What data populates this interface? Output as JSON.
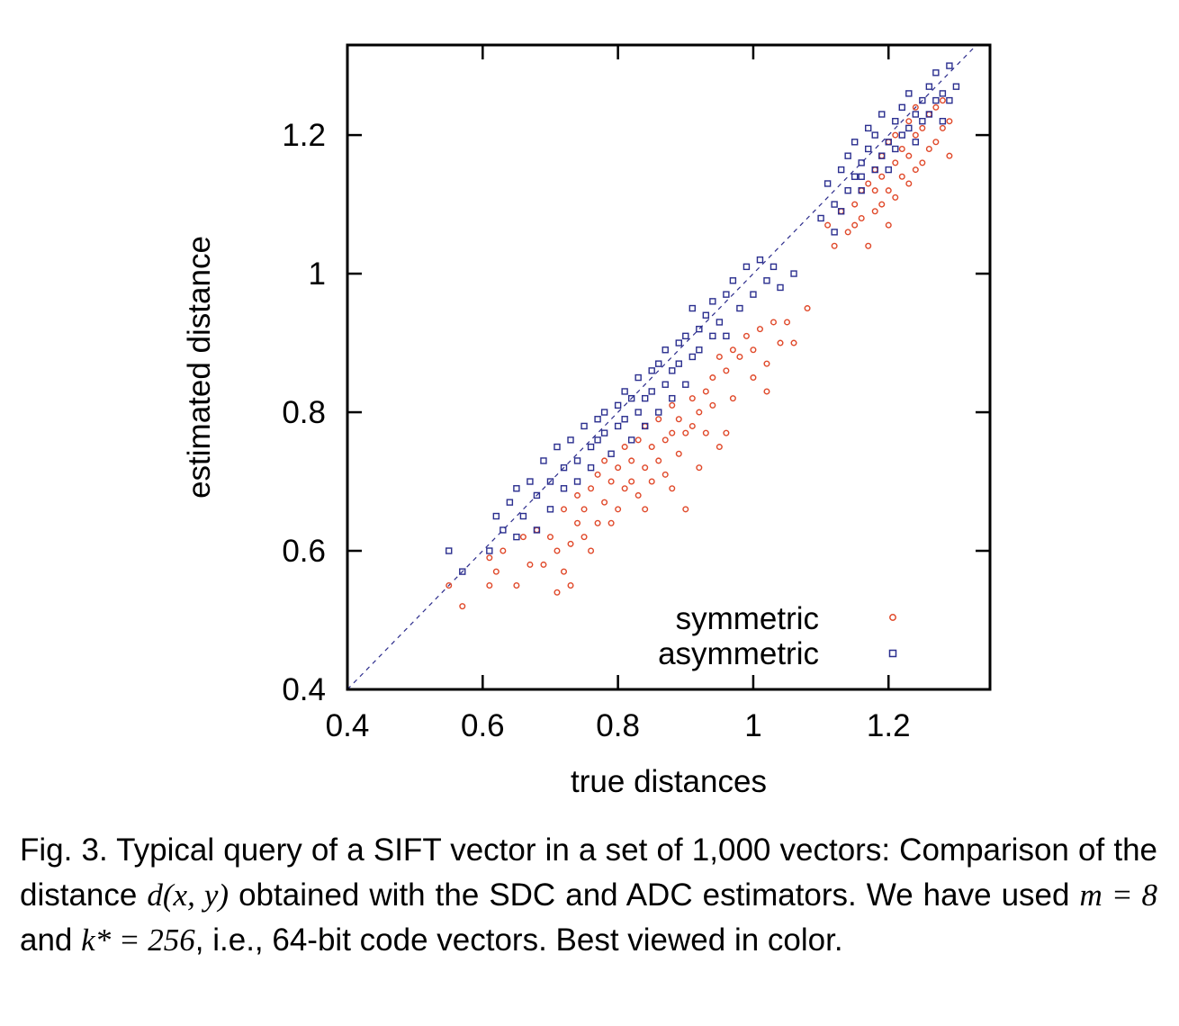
{
  "chart_data": {
    "type": "scatter",
    "title": "",
    "xlabel": "true distances",
    "ylabel": "estimated distance",
    "xlim": [
      0.4,
      1.35
    ],
    "ylim": [
      0.4,
      1.33
    ],
    "xticks": [
      0.4,
      0.6,
      0.8,
      1.0,
      1.2
    ],
    "xtick_labels": [
      "0.4",
      "0.6",
      "0.8",
      "1",
      "1.2"
    ],
    "yticks": [
      0.4,
      0.6,
      0.8,
      1.0,
      1.2
    ],
    "ytick_labels": [
      "0.4",
      "0.6",
      "0.8",
      "1",
      "1.2"
    ],
    "grid": false,
    "legend_position": "bottom-right",
    "reference_line": {
      "style": "dashed",
      "color": "#2c2c8c",
      "from": [
        0.4,
        0.4
      ],
      "to": [
        1.35,
        1.35
      ]
    },
    "series": [
      {
        "name": "symmetric",
        "marker": "circle",
        "color": "#e0492a",
        "points": [
          [
            0.55,
            0.55
          ],
          [
            0.57,
            0.52
          ],
          [
            0.61,
            0.59
          ],
          [
            0.61,
            0.55
          ],
          [
            0.62,
            0.57
          ],
          [
            0.63,
            0.6
          ],
          [
            0.65,
            0.55
          ],
          [
            0.66,
            0.62
          ],
          [
            0.67,
            0.58
          ],
          [
            0.68,
            0.63
          ],
          [
            0.7,
            0.62
          ],
          [
            0.71,
            0.54
          ],
          [
            0.71,
            0.6
          ],
          [
            0.72,
            0.57
          ],
          [
            0.72,
            0.66
          ],
          [
            0.73,
            0.61
          ],
          [
            0.74,
            0.64
          ],
          [
            0.74,
            0.68
          ],
          [
            0.75,
            0.62
          ],
          [
            0.75,
            0.66
          ],
          [
            0.76,
            0.69
          ],
          [
            0.77,
            0.64
          ],
          [
            0.77,
            0.71
          ],
          [
            0.78,
            0.67
          ],
          [
            0.78,
            0.73
          ],
          [
            0.79,
            0.7
          ],
          [
            0.8,
            0.66
          ],
          [
            0.8,
            0.72
          ],
          [
            0.81,
            0.69
          ],
          [
            0.81,
            0.75
          ],
          [
            0.82,
            0.7
          ],
          [
            0.82,
            0.73
          ],
          [
            0.83,
            0.68
          ],
          [
            0.83,
            0.76
          ],
          [
            0.84,
            0.72
          ],
          [
            0.84,
            0.78
          ],
          [
            0.85,
            0.7
          ],
          [
            0.85,
            0.75
          ],
          [
            0.86,
            0.73
          ],
          [
            0.86,
            0.79
          ],
          [
            0.87,
            0.76
          ],
          [
            0.87,
            0.71
          ],
          [
            0.88,
            0.77
          ],
          [
            0.88,
            0.81
          ],
          [
            0.89,
            0.74
          ],
          [
            0.89,
            0.79
          ],
          [
            0.9,
            0.66
          ],
          [
            0.9,
            0.77
          ],
          [
            0.91,
            0.82
          ],
          [
            0.91,
            0.78
          ],
          [
            0.92,
            0.8
          ],
          [
            0.93,
            0.77
          ],
          [
            0.93,
            0.83
          ],
          [
            0.94,
            0.81
          ],
          [
            0.94,
            0.85
          ],
          [
            0.95,
            0.75
          ],
          [
            0.95,
            0.88
          ],
          [
            0.96,
            0.86
          ],
          [
            0.97,
            0.89
          ],
          [
            0.98,
            0.88
          ],
          [
            0.99,
            0.91
          ],
          [
            1.0,
            0.89
          ],
          [
            1.01,
            0.92
          ],
          [
            1.03,
            0.93
          ],
          [
            1.05,
            0.93
          ],
          [
            1.06,
            0.9
          ],
          [
            1.08,
            0.95
          ],
          [
            1.02,
            0.83
          ],
          [
            1.0,
            0.85
          ],
          [
            0.97,
            0.82
          ],
          [
            0.69,
            0.58
          ],
          [
            0.73,
            0.55
          ],
          [
            0.76,
            0.6
          ],
          [
            0.79,
            0.64
          ],
          [
            0.84,
            0.66
          ],
          [
            0.88,
            0.69
          ],
          [
            0.92,
            0.72
          ],
          [
            0.96,
            0.77
          ],
          [
            1.02,
            0.87
          ],
          [
            1.04,
            0.9
          ],
          [
            1.11,
            1.07
          ],
          [
            1.12,
            1.04
          ],
          [
            1.13,
            1.09
          ],
          [
            1.14,
            1.06
          ],
          [
            1.15,
            1.1
          ],
          [
            1.15,
            1.07
          ],
          [
            1.16,
            1.12
          ],
          [
            1.16,
            1.08
          ],
          [
            1.17,
            1.04
          ],
          [
            1.17,
            1.13
          ],
          [
            1.18,
            1.09
          ],
          [
            1.18,
            1.15
          ],
          [
            1.19,
            1.1
          ],
          [
            1.19,
            1.14
          ],
          [
            1.2,
            1.12
          ],
          [
            1.2,
            1.07
          ],
          [
            1.21,
            1.16
          ],
          [
            1.21,
            1.11
          ],
          [
            1.22,
            1.14
          ],
          [
            1.22,
            1.18
          ],
          [
            1.23,
            1.13
          ],
          [
            1.23,
            1.17
          ],
          [
            1.24,
            1.15
          ],
          [
            1.24,
            1.2
          ],
          [
            1.25,
            1.16
          ],
          [
            1.25,
            1.21
          ],
          [
            1.26,
            1.18
          ],
          [
            1.26,
            1.23
          ],
          [
            1.27,
            1.19
          ],
          [
            1.27,
            1.24
          ],
          [
            1.28,
            1.21
          ],
          [
            1.28,
            1.25
          ],
          [
            1.29,
            1.22
          ],
          [
            1.29,
            1.17
          ],
          [
            1.2,
            1.19
          ],
          [
            1.21,
            1.2
          ],
          [
            1.23,
            1.22
          ],
          [
            1.24,
            1.24
          ],
          [
            1.19,
            1.17
          ],
          [
            1.18,
            1.12
          ]
        ]
      },
      {
        "name": "asymmetric",
        "marker": "square",
        "color": "#2b2f8f",
        "points": [
          [
            0.55,
            0.6
          ],
          [
            0.57,
            0.57
          ],
          [
            0.61,
            0.6
          ],
          [
            0.62,
            0.65
          ],
          [
            0.63,
            0.63
          ],
          [
            0.64,
            0.67
          ],
          [
            0.65,
            0.69
          ],
          [
            0.66,
            0.65
          ],
          [
            0.67,
            0.7
          ],
          [
            0.68,
            0.68
          ],
          [
            0.69,
            0.73
          ],
          [
            0.7,
            0.7
          ],
          [
            0.7,
            0.66
          ],
          [
            0.71,
            0.75
          ],
          [
            0.72,
            0.72
          ],
          [
            0.72,
            0.69
          ],
          [
            0.73,
            0.76
          ],
          [
            0.74,
            0.73
          ],
          [
            0.74,
            0.7
          ],
          [
            0.75,
            0.78
          ],
          [
            0.76,
            0.75
          ],
          [
            0.76,
            0.72
          ],
          [
            0.77,
            0.79
          ],
          [
            0.77,
            0.76
          ],
          [
            0.78,
            0.8
          ],
          [
            0.78,
            0.77
          ],
          [
            0.79,
            0.74
          ],
          [
            0.8,
            0.81
          ],
          [
            0.8,
            0.78
          ],
          [
            0.81,
            0.83
          ],
          [
            0.81,
            0.79
          ],
          [
            0.82,
            0.76
          ],
          [
            0.82,
            0.82
          ],
          [
            0.83,
            0.8
          ],
          [
            0.83,
            0.85
          ],
          [
            0.84,
            0.82
          ],
          [
            0.84,
            0.78
          ],
          [
            0.85,
            0.86
          ],
          [
            0.85,
            0.83
          ],
          [
            0.86,
            0.8
          ],
          [
            0.86,
            0.87
          ],
          [
            0.87,
            0.84
          ],
          [
            0.87,
            0.89
          ],
          [
            0.88,
            0.86
          ],
          [
            0.88,
            0.82
          ],
          [
            0.89,
            0.9
          ],
          [
            0.89,
            0.87
          ],
          [
            0.9,
            0.84
          ],
          [
            0.9,
            0.91
          ],
          [
            0.91,
            0.88
          ],
          [
            0.91,
            0.95
          ],
          [
            0.92,
            0.92
          ],
          [
            0.92,
            0.89
          ],
          [
            0.93,
            0.94
          ],
          [
            0.94,
            0.91
          ],
          [
            0.94,
            0.96
          ],
          [
            0.95,
            0.93
          ],
          [
            0.96,
            0.97
          ],
          [
            0.96,
            0.91
          ],
          [
            0.97,
            0.99
          ],
          [
            0.98,
            0.95
          ],
          [
            0.99,
            1.01
          ],
          [
            1.0,
            0.97
          ],
          [
            1.01,
            1.02
          ],
          [
            1.02,
            0.99
          ],
          [
            1.03,
            1.01
          ],
          [
            1.04,
            0.98
          ],
          [
            1.06,
            1.0
          ],
          [
            0.65,
            0.62
          ],
          [
            0.68,
            0.63
          ],
          [
            1.1,
            1.08
          ],
          [
            1.11,
            1.13
          ],
          [
            1.12,
            1.1
          ],
          [
            1.13,
            1.15
          ],
          [
            1.14,
            1.12
          ],
          [
            1.14,
            1.17
          ],
          [
            1.15,
            1.14
          ],
          [
            1.15,
            1.19
          ],
          [
            1.16,
            1.16
          ],
          [
            1.16,
            1.12
          ],
          [
            1.17,
            1.18
          ],
          [
            1.17,
            1.21
          ],
          [
            1.18,
            1.15
          ],
          [
            1.18,
            1.2
          ],
          [
            1.19,
            1.17
          ],
          [
            1.19,
            1.23
          ],
          [
            1.2,
            1.19
          ],
          [
            1.2,
            1.15
          ],
          [
            1.21,
            1.22
          ],
          [
            1.21,
            1.18
          ],
          [
            1.22,
            1.24
          ],
          [
            1.22,
            1.2
          ],
          [
            1.23,
            1.21
          ],
          [
            1.23,
            1.26
          ],
          [
            1.24,
            1.23
          ],
          [
            1.24,
            1.19
          ],
          [
            1.25,
            1.25
          ],
          [
            1.25,
            1.22
          ],
          [
            1.26,
            1.27
          ],
          [
            1.26,
            1.23
          ],
          [
            1.27,
            1.25
          ],
          [
            1.27,
            1.29
          ],
          [
            1.28,
            1.26
          ],
          [
            1.28,
            1.22
          ],
          [
            1.29,
            1.3
          ],
          [
            1.29,
            1.25
          ],
          [
            1.3,
            1.27
          ],
          [
            1.13,
            1.09
          ],
          [
            1.12,
            1.06
          ],
          [
            1.16,
            1.14
          ]
        ]
      }
    ]
  },
  "caption": {
    "part1": "Fig. 3. Typical query of a SIFT vector in a set of 1,000 vectors: Comparison of the distance ",
    "math1": "d(x, y)",
    "part2": " obtained with the SDC and ADC estimators. We have used ",
    "math2": "m = 8",
    "part3": " and ",
    "math3": "k* = 256",
    "part4": ", i.e., 64-bit code vectors. Best viewed in color."
  }
}
